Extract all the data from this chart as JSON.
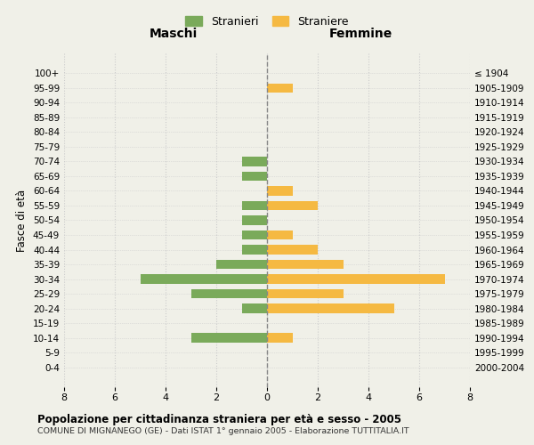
{
  "age_groups": [
    "100+",
    "95-99",
    "90-94",
    "85-89",
    "80-84",
    "75-79",
    "70-74",
    "65-69",
    "60-64",
    "55-59",
    "50-54",
    "45-49",
    "40-44",
    "35-39",
    "30-34",
    "25-29",
    "20-24",
    "15-19",
    "10-14",
    "5-9",
    "0-4"
  ],
  "birth_years": [
    "≤ 1904",
    "1905-1909",
    "1910-1914",
    "1915-1919",
    "1920-1924",
    "1925-1929",
    "1930-1934",
    "1935-1939",
    "1940-1944",
    "1945-1949",
    "1950-1954",
    "1955-1959",
    "1960-1964",
    "1965-1969",
    "1970-1974",
    "1975-1979",
    "1980-1984",
    "1985-1989",
    "1990-1994",
    "1995-1999",
    "2000-2004"
  ],
  "maschi": [
    0,
    0,
    0,
    0,
    0,
    0,
    1,
    1,
    0,
    1,
    1,
    1,
    1,
    2,
    5,
    3,
    1,
    0,
    3,
    0,
    0
  ],
  "femmine": [
    0,
    1,
    0,
    0,
    0,
    0,
    0,
    0,
    1,
    2,
    0,
    1,
    2,
    3,
    7,
    3,
    5,
    0,
    1,
    0,
    0
  ],
  "color_maschi": "#7aaa5a",
  "color_femmine": "#f5b942",
  "background_color": "#f0f0e8",
  "title": "Popolazione per cittadinanza straniera per età e sesso - 2005",
  "subtitle": "COMUNE DI MIGNANEGO (GE) - Dati ISTAT 1° gennaio 2005 - Elaborazione TUTTITALIA.IT",
  "ylabel_left": "Fasce di età",
  "xlabel_left": "Maschi",
  "xlabel_right": "Femmine",
  "legend_maschi": "Stranieri",
  "legend_femmine": "Straniere",
  "xlim": 8,
  "grid_color": "#cccccc"
}
